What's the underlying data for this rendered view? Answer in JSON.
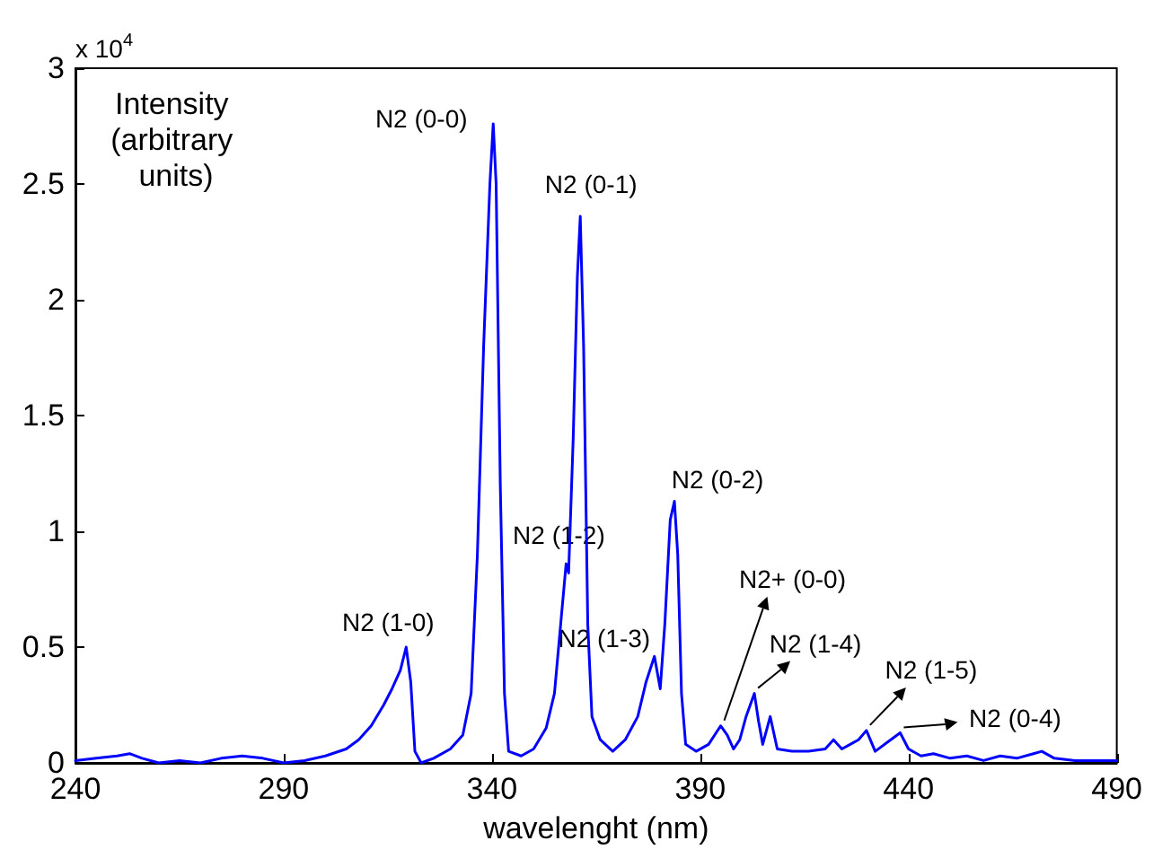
{
  "chart_data": {
    "type": "line",
    "xlabel": "wavelenght (nm)",
    "ylabel": "Intensity (arbitrary units)",
    "x": [
      240,
      245,
      250,
      253,
      256,
      260,
      265,
      270,
      275,
      280,
      285,
      290,
      295,
      300,
      305,
      308,
      311,
      314,
      316,
      318,
      319.4,
      320.5,
      321.5,
      323,
      326,
      330,
      333,
      335,
      336.5,
      338,
      339.5,
      340.3,
      341,
      342,
      343,
      344,
      347,
      350,
      353,
      355,
      356.5,
      357.8,
      358.4,
      359.5,
      360.5,
      361.2,
      362,
      363,
      364,
      366,
      369,
      372,
      375,
      377,
      379,
      380.4,
      381.5,
      382.8,
      383.8,
      384.6,
      385.5,
      386.5,
      389,
      392,
      394.9,
      396.5,
      398,
      399.5,
      401,
      403,
      404,
      405,
      406.8,
      408.5,
      412,
      416,
      420,
      422,
      424,
      426,
      428,
      429.9,
      432,
      435,
      438,
      440,
      443,
      446,
      450,
      454,
      458,
      462,
      466,
      470,
      472,
      475,
      480,
      485,
      490
    ],
    "series": [
      {
        "color": "#0000ff",
        "values": [
          0.01,
          0.02,
          0.03,
          0.04,
          0.02,
          0.0,
          0.01,
          0.0,
          0.02,
          0.03,
          0.02,
          0.0,
          0.01,
          0.03,
          0.06,
          0.1,
          0.16,
          0.25,
          0.32,
          0.4,
          0.5,
          0.35,
          0.05,
          0.0,
          0.02,
          0.06,
          0.12,
          0.3,
          0.9,
          1.8,
          2.5,
          2.76,
          2.5,
          1.2,
          0.3,
          0.05,
          0.03,
          0.06,
          0.15,
          0.3,
          0.6,
          0.86,
          0.82,
          1.4,
          2.1,
          2.36,
          1.8,
          0.6,
          0.2,
          0.1,
          0.05,
          0.1,
          0.2,
          0.35,
          0.46,
          0.32,
          0.6,
          1.05,
          1.13,
          0.9,
          0.3,
          0.08,
          0.05,
          0.08,
          0.16,
          0.12,
          0.06,
          0.1,
          0.2,
          0.3,
          0.18,
          0.08,
          0.2,
          0.06,
          0.05,
          0.05,
          0.06,
          0.1,
          0.06,
          0.08,
          0.1,
          0.14,
          0.05,
          0.09,
          0.13,
          0.06,
          0.03,
          0.04,
          0.02,
          0.03,
          0.01,
          0.03,
          0.02,
          0.04,
          0.05,
          0.02,
          0.01,
          0.01,
          0.01
        ]
      }
    ],
    "xlim": [
      240,
      490
    ],
    "xticks": [
      240,
      290,
      340,
      390,
      440,
      490
    ],
    "ylim": [
      0,
      3
    ],
    "yticks": [
      0,
      0.5,
      1,
      1.5,
      2,
      2.5,
      3
    ],
    "grid": false,
    "marker": "none",
    "line_style": "solid",
    "annotations": [
      "x 10$^{4}$",
      {
        "text": "N2 (0-0)",
        "x": 340.3,
        "y": 2.76
      },
      {
        "text": "N2 (0-1)",
        "x": 361.2,
        "y": 2.36
      },
      {
        "text": "N2 (0-2)",
        "x": 383.8,
        "y": 1.13
      },
      {
        "text": "N2 (1-0)",
        "x": 319.4,
        "y": 0.5
      },
      {
        "text": "N2 (1-2)",
        "x": 357.8,
        "y": 0.86
      },
      {
        "text": "N2 (1-3)",
        "x": 379,
        "y": 0.46
      },
      {
        "text": "N2+ (0-0)",
        "x": 394.9,
        "y": 0.16
      },
      {
        "text": "N2 (1-4)",
        "x": 403,
        "y": 0.3
      },
      {
        "text": "N2 (1-5)",
        "x": 429.9,
        "y": 0.14
      },
      {
        "text": "N2 (0-4)",
        "x": 438,
        "y": 0.13
      }
    ]
  }
}
